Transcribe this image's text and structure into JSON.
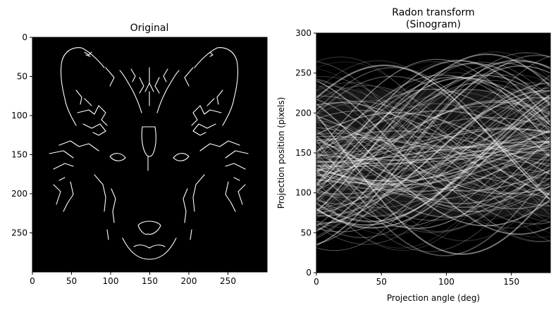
{
  "figure": {
    "background": "#ffffff",
    "image_background": "#000000",
    "edge_color": "#ffffff"
  },
  "chart_data": [
    {
      "type": "heatmap",
      "title": "Original",
      "xlabel": "",
      "ylabel": "",
      "xlim": [
        0,
        300
      ],
      "ylim": [
        300,
        0
      ],
      "xticks": [
        0,
        50,
        100,
        150,
        200,
        250
      ],
      "yticks": [
        0,
        50,
        100,
        150,
        200,
        250
      ],
      "colormap": "gray",
      "content": "edge map of a wolf face (white lines on black)"
    },
    {
      "type": "heatmap",
      "title_lines": [
        "Radon transform",
        "(Sinogram)"
      ],
      "xlabel": "Projection angle (deg)",
      "ylabel": "Projection position (pixels)",
      "xlim": [
        0,
        180
      ],
      "ylim": [
        0,
        300
      ],
      "xticks": [
        0,
        50,
        100,
        150
      ],
      "yticks": [
        0,
        50,
        100,
        150,
        200,
        250,
        300
      ],
      "colormap": "gray"
    }
  ]
}
